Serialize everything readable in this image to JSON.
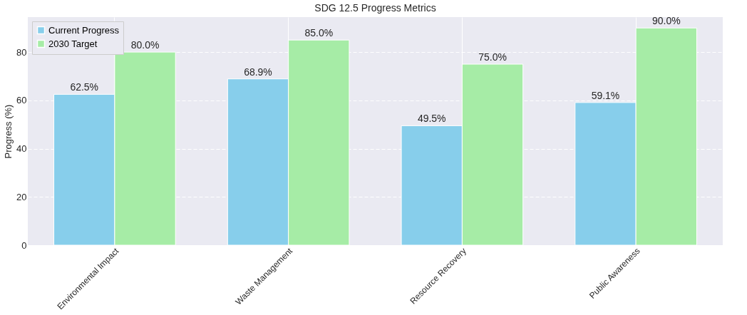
{
  "chart_data": {
    "type": "bar",
    "title": "SDG 12.5 Progress Metrics",
    "ylabel": "Progress (%)",
    "categories": [
      "Environmental Impact",
      "Waste Management",
      "Resource Recovery",
      "Public Awareness"
    ],
    "series": [
      {
        "name": "Current Progress",
        "color": "#87ceeb",
        "values": [
          62.5,
          68.9,
          49.5,
          59.1
        ],
        "value_labels": [
          "62.5%",
          "68.9%",
          "49.5%",
          "59.1%"
        ]
      },
      {
        "name": "2030 Target",
        "color": "#a6eca6",
        "values": [
          80.0,
          85.0,
          75.0,
          90.0
        ],
        "value_labels": [
          "80.0%",
          "85.0%",
          "75.0%",
          "90.0%"
        ]
      }
    ],
    "ylim": [
      0,
      94.5
    ],
    "yticks": [
      0,
      20,
      40,
      60,
      80
    ],
    "grid": true,
    "legend": "top left"
  }
}
